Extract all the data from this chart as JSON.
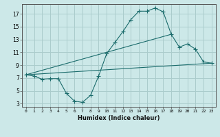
{
  "title": "",
  "xlabel": "Humidex (Indice chaleur)",
  "ylabel": "",
  "bg_color": "#cce8e8",
  "grid_color": "#aacccc",
  "line_color": "#1a6b6b",
  "xlim": [
    -0.5,
    23.5
  ],
  "ylim": [
    2.5,
    18.5
  ],
  "xticks": [
    0,
    1,
    2,
    3,
    4,
    5,
    6,
    7,
    8,
    9,
    10,
    11,
    12,
    13,
    14,
    15,
    16,
    17,
    18,
    19,
    20,
    21,
    22,
    23
  ],
  "yticks": [
    3,
    5,
    7,
    9,
    11,
    13,
    15,
    17
  ],
  "curve1_x": [
    0,
    1,
    2,
    3,
    4,
    5,
    6,
    7,
    8,
    9,
    10,
    11,
    12,
    13,
    14,
    15,
    16,
    17,
    18,
    19,
    20,
    21,
    22,
    23
  ],
  "curve1_y": [
    7.5,
    7.3,
    6.8,
    6.9,
    6.9,
    4.6,
    3.4,
    3.2,
    4.3,
    7.3,
    10.8,
    12.5,
    14.2,
    16.1,
    17.4,
    17.4,
    17.9,
    17.3,
    13.8,
    11.8,
    12.3,
    11.5,
    9.5,
    9.3
  ],
  "curve2_x": [
    0,
    23
  ],
  "curve2_y": [
    7.5,
    9.3
  ],
  "curve3_x": [
    0,
    18
  ],
  "curve3_y": [
    7.5,
    13.8
  ],
  "marker_size": 4
}
